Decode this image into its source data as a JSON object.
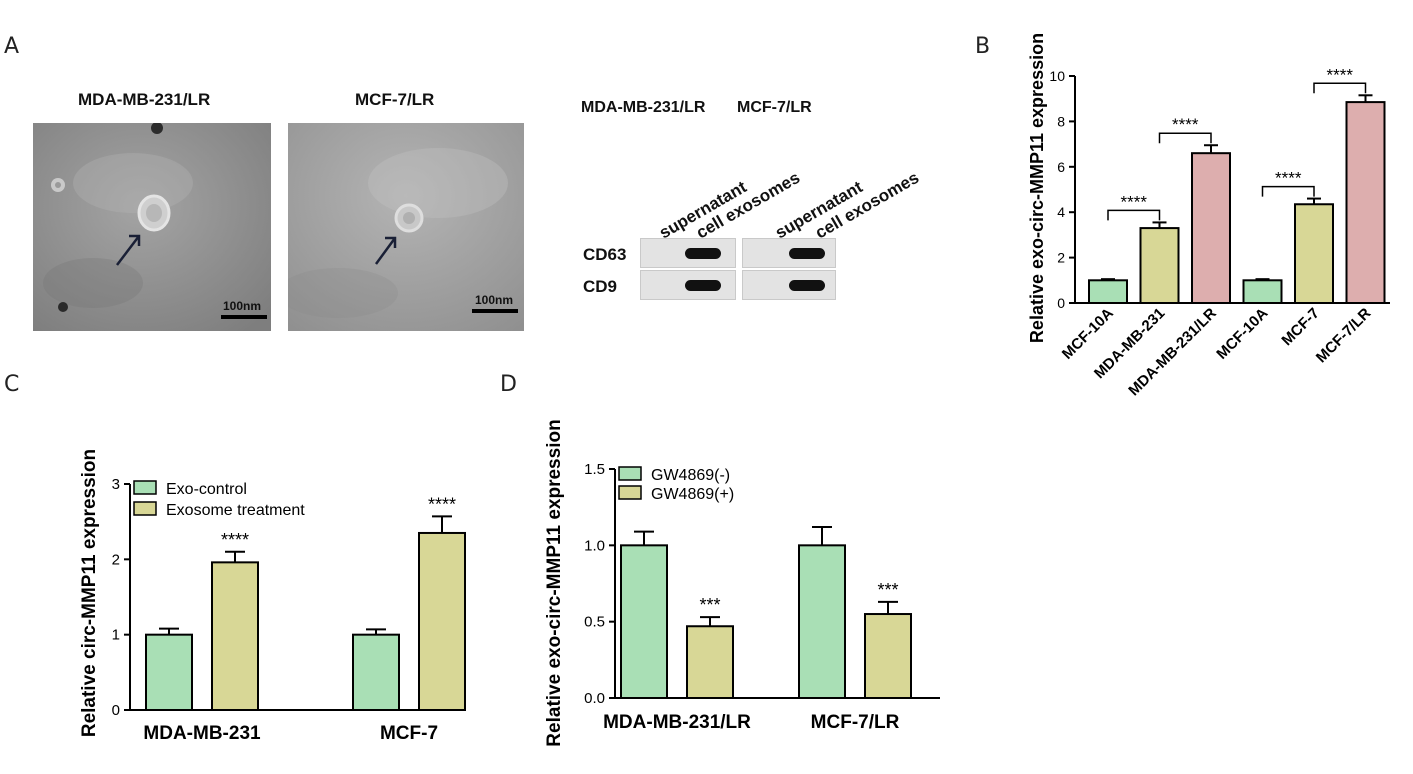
{
  "panels": {
    "a": "A",
    "b": "B",
    "c": "C",
    "d": "D"
  },
  "panel_a": {
    "micrographs": [
      {
        "title": "MDA-MB-231/LR",
        "scale": "100nm"
      },
      {
        "title": "MCF-7/LR",
        "scale": "100nm"
      }
    ],
    "blot": {
      "headers": [
        "MDA-MB-231/LR",
        "MCF-7/LR"
      ],
      "lanes": [
        "supernatant",
        "cell exosomes",
        "supernatant",
        "cell exosomes"
      ],
      "markers": [
        "CD63",
        "CD9"
      ]
    }
  },
  "chart_data": [
    {
      "id": "B",
      "type": "bar",
      "ylabel": "Relative exo-circ-MMP11 expression",
      "ylim": [
        0,
        10
      ],
      "yticks": [
        "0",
        "2",
        "4",
        "6",
        "8",
        "10"
      ],
      "categories": [
        "MCF-10A",
        "MDA-MB-231",
        "MDA-MB-231/LR",
        "MCF-10A",
        "MCF-7",
        "MCF-7/LR"
      ],
      "values": [
        1.0,
        3.3,
        6.6,
        1.0,
        4.35,
        8.85
      ],
      "errors": [
        0.05,
        0.25,
        0.35,
        0.05,
        0.25,
        0.3
      ],
      "colors": [
        "#a9dfb5",
        "#d8d796",
        "#ddaeae",
        "#a9dfb5",
        "#d8d796",
        "#ddaeae"
      ],
      "significance": [
        {
          "from": 0,
          "to": 1,
          "label": "****"
        },
        {
          "from": 1,
          "to": 2,
          "label": "****"
        },
        {
          "from": 3,
          "to": 4,
          "label": "****"
        },
        {
          "from": 4,
          "to": 5,
          "label": "****"
        }
      ]
    },
    {
      "id": "C",
      "type": "bar",
      "ylabel": "Relative circ-MMP11 expression",
      "ylim": [
        0,
        3
      ],
      "yticks": [
        "0",
        "1",
        "2",
        "3"
      ],
      "categories": [
        "MDA-MB-231",
        "MCF-7"
      ],
      "series": [
        {
          "name": "Exo-control",
          "color": "#a9dfb5",
          "values": [
            1.0,
            1.0
          ],
          "errors": [
            0.08,
            0.07
          ],
          "stars": [
            "",
            ""
          ]
        },
        {
          "name": "Exosome treatment",
          "color": "#d8d796",
          "values": [
            1.96,
            2.35
          ],
          "errors": [
            0.14,
            0.22
          ],
          "stars": [
            "****",
            "****"
          ]
        }
      ],
      "legend": "top-left"
    },
    {
      "id": "D",
      "type": "bar",
      "ylabel": "Relative exo-circ-MMP11 expression",
      "ylim": [
        0,
        1.5
      ],
      "yticks": [
        "0.0",
        "0.5",
        "1.0",
        "1.5"
      ],
      "categories": [
        "MDA-MB-231/LR",
        "MCF-7/LR"
      ],
      "series": [
        {
          "name": "GW4869(-)",
          "color": "#a9dfb5",
          "values": [
            1.0,
            1.0
          ],
          "errors": [
            0.09,
            0.12
          ],
          "stars": [
            "",
            ""
          ]
        },
        {
          "name": "GW4869(+)",
          "color": "#d8d796",
          "values": [
            0.47,
            0.55
          ],
          "errors": [
            0.06,
            0.08
          ],
          "stars": [
            "***",
            "***"
          ]
        }
      ],
      "legend": "top-left"
    }
  ]
}
